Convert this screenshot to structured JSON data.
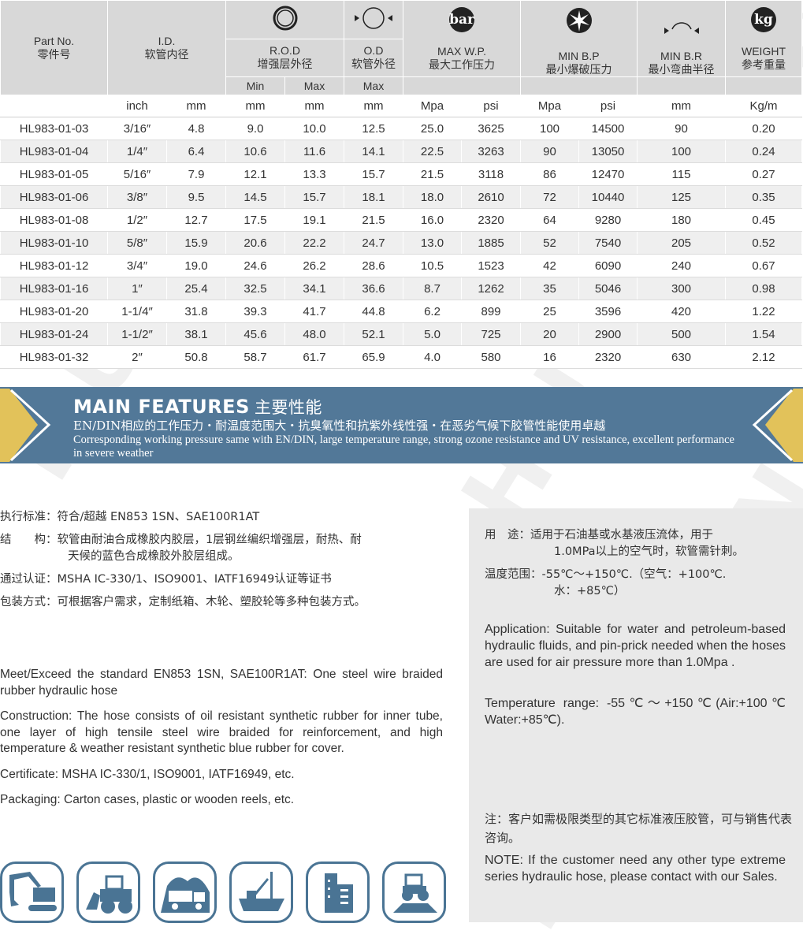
{
  "table": {
    "headers": {
      "part_no": "Part No.",
      "part_no_cn": "零件号",
      "id": "I.D.",
      "id_cn": "软管内径",
      "rod": "R.O.D",
      "rod_cn": "增强层外径",
      "od": "O.D",
      "od_cn": "软管外径",
      "wp": "MAX W.P.",
      "wp_cn": "最大工作压力",
      "bp": "MIN B.P",
      "bp_cn": "最小爆破压力",
      "br": "MIN B.R",
      "br_cn": "最小弯曲半径",
      "weight": "WEIGHT",
      "weight_cn": "参考重量",
      "min": "Min",
      "max": "Max",
      "od_max": "Max",
      "bar_icon": "bar",
      "kg_icon": "kg"
    },
    "units": [
      "",
      "inch",
      "mm",
      "mm",
      "mm",
      "mm",
      "Mpa",
      "psi",
      "Mpa",
      "psi",
      "mm",
      "Kg/m"
    ],
    "rows": [
      [
        "HL983-01-03",
        "3/16″",
        "4.8",
        "9.0",
        "10.0",
        "12.5",
        "25.0",
        "3625",
        "100",
        "14500",
        "90",
        "0.20"
      ],
      [
        "HL983-01-04",
        "1/4″",
        "6.4",
        "10.6",
        "11.6",
        "14.1",
        "22.5",
        "3263",
        "90",
        "13050",
        "100",
        "0.24"
      ],
      [
        "HL983-01-05",
        "5/16″",
        "7.9",
        "12.1",
        "13.3",
        "15.7",
        "21.5",
        "3118",
        "86",
        "12470",
        "115",
        "0.27"
      ],
      [
        "HL983-01-06",
        "3/8″",
        "9.5",
        "14.5",
        "15.7",
        "18.1",
        "18.0",
        "2610",
        "72",
        "10440",
        "125",
        "0.35"
      ],
      [
        "HL983-01-08",
        "1/2″",
        "12.7",
        "17.5",
        "19.1",
        "21.5",
        "16.0",
        "2320",
        "64",
        "9280",
        "180",
        "0.45"
      ],
      [
        "HL983-01-10",
        "5/8″",
        "15.9",
        "20.6",
        "22.2",
        "24.7",
        "13.0",
        "1885",
        "52",
        "7540",
        "205",
        "0.52"
      ],
      [
        "HL983-01-12",
        "3/4″",
        "19.0",
        "24.6",
        "26.2",
        "28.6",
        "10.5",
        "1523",
        "42",
        "6090",
        "240",
        "0.67"
      ],
      [
        "HL983-01-16",
        "1″",
        "25.4",
        "32.5",
        "34.1",
        "36.6",
        "8.7",
        "1262",
        "35",
        "5046",
        "300",
        "0.98"
      ],
      [
        "HL983-01-20",
        "1-1/4″",
        "31.8",
        "39.3",
        "41.7",
        "44.8",
        "6.2",
        "899",
        "25",
        "3596",
        "420",
        "1.22"
      ],
      [
        "HL983-01-24",
        "1-1/2″",
        "38.1",
        "45.6",
        "48.0",
        "52.1",
        "5.0",
        "725",
        "20",
        "2900",
        "500",
        "1.54"
      ],
      [
        "HL983-01-32",
        "2″",
        "50.8",
        "58.7",
        "61.7",
        "65.9",
        "4.0",
        "580",
        "16",
        "2320",
        "630",
        "2.12"
      ]
    ]
  },
  "banner": {
    "title": "MAIN FEATURES",
    "title_cn": "主要性能",
    "cn": "EN/DIN相应的工作压力・耐温度范围大・抗臭氧性和抗紫外线性强・在恶劣气候下胶管性能使用卓越",
    "en": "Corresponding working pressure same with EN/DIN,  large temperature range, strong ozone resistance and UV resistance, excellent performance in severe weather",
    "color": "#527898",
    "accent": "#e2c25a"
  },
  "left_cn": {
    "standard": "执行标准：符合/超越 EN853 1SN、SAE100R1AT",
    "structure_label": "结　　构：",
    "structure_1": "软管由耐油合成橡胶内胶层，1层钢丝编织增强层，耐热、耐",
    "structure_2": "天候的蓝色合成橡胶外胶层组成。",
    "cert": "通过认证：MSHA IC-330/1、ISO9001、IATF16949认证等证书",
    "packaging": "包装方式：可根据客户需求，定制纸箱、木轮、塑胶轮等多种包装方式。"
  },
  "left_en": {
    "standard": "Meet/Exceed the standard EN853 1SN, SAE100R1AT: One steel wire braided rubber hydraulic hose",
    "construction": "Construction: The hose consists of oil resistant synthetic rubber for inner tube, one layer of high tensile steel wire braided for reinforcement, and high temperature & weather resistant synthetic blue rubber for cover.",
    "certificate": "Certificate: MSHA IC-330/1, ISO9001, IATF16949,  etc.",
    "packaging": "Packaging: Carton cases, plastic or wooden reels, etc."
  },
  "panel": {
    "usage_label": "用　途：",
    "usage_1": "适用于石油基或水基液压流体，用于",
    "usage_2": "1.0MPa以上的空气时，软管需针刺。",
    "temp_label": "温度范围：",
    "temp_1": "-55℃～+150℃.（空气：+100℃.",
    "temp_2": "水：+85℃）",
    "application": "Application: Suitable for water and petroleum-based hydraulic fluids, and pin-prick needed when the hoses are used for air pressure more than 1.0Mpa .",
    "temperature": "Temperature range: -55℃～+150℃(Air:+100℃ Water:+85℃).",
    "note_cn": "注：客户如需极限类型的其它标准液压胶管，可与销售代表咨询。",
    "note_en": "NOTE: If the customer need any other type extreme series hydraulic hose, please contact with our Sales."
  },
  "application_icons": [
    "excavator-icon",
    "wheel-loader-icon",
    "mining-truck-icon",
    "ship-crane-icon",
    "building-icon",
    "agriculture-tractor-icon"
  ],
  "watermark": "HUVLONE"
}
